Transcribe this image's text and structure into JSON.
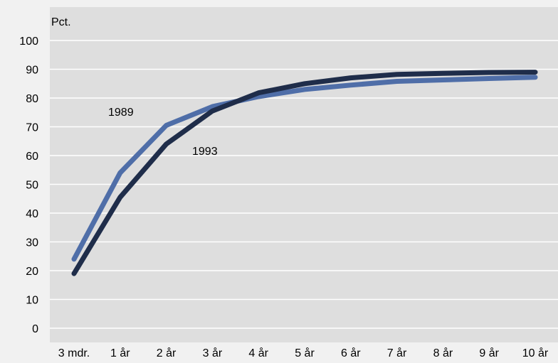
{
  "chart_data": {
    "type": "line",
    "ylabel": "Pct.",
    "ylim": [
      0,
      100
    ],
    "yticks": [
      0,
      10,
      20,
      30,
      40,
      50,
      60,
      70,
      80,
      90,
      100
    ],
    "categories": [
      "3 mdr.",
      "1 år",
      "2 år",
      "3 år",
      "4 år",
      "5 år",
      "6 år",
      "7 år",
      "8 år",
      "9 år",
      "10 år"
    ],
    "grid": true,
    "series": [
      {
        "name": "1989",
        "color": "#4f6ea8",
        "values": [
          24,
          54,
          70.5,
          77,
          80.5,
          83,
          84.5,
          85.8,
          86.3,
          86.8,
          87.2
        ]
      },
      {
        "name": "1993",
        "color": "#1f2d4a",
        "values": [
          19,
          45.5,
          64,
          75.5,
          81.8,
          85,
          87,
          88.2,
          88.6,
          88.9,
          89
        ]
      }
    ],
    "plot_background": "#dedede",
    "page_background": "#f1f1f1",
    "gridline_color": "#ffffff"
  }
}
